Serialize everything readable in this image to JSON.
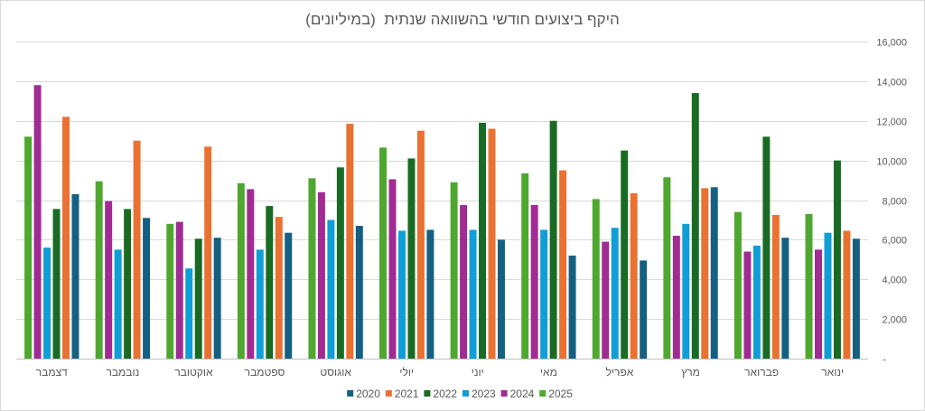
{
  "chart_data": {
    "type": "bar",
    "title": "היקף ביצועים חודשי בהשוואה שנתית  (במיליונים)",
    "categories": [
      "ינואר",
      "פברואר",
      "מרץ",
      "אפריל",
      "מאי",
      "יוני",
      "יולי",
      "אוגוסט",
      "ספטמבר",
      "אוקטובר",
      "נובמבר",
      "דצמבר"
    ],
    "series": [
      {
        "name": "2020",
        "color": "#156082",
        "values": [
          6050,
          6100,
          8650,
          4950,
          5200,
          6000,
          6500,
          6700,
          6350,
          6100,
          7100,
          8300
        ]
      },
      {
        "name": "2021",
        "color": "#E97132",
        "values": [
          6450,
          7250,
          8600,
          8350,
          9500,
          11600,
          11500,
          11850,
          7150,
          10700,
          11000,
          12200
        ]
      },
      {
        "name": "2022",
        "color": "#196B24",
        "values": [
          10000,
          11200,
          13400,
          10500,
          12000,
          11900,
          10100,
          9650,
          7700,
          6050,
          7550,
          7550
        ]
      },
      {
        "name": "2023",
        "color": "#0F9ED5",
        "values": [
          6350,
          5700,
          6800,
          6600,
          6500,
          6500,
          6450,
          7000,
          5500,
          4550,
          5500,
          5600
        ]
      },
      {
        "name": "2024",
        "color": "#A02B93",
        "values": [
          5500,
          5400,
          6200,
          5900,
          7750,
          7750,
          9050,
          8400,
          8550,
          6900,
          7950,
          13800
        ]
      },
      {
        "name": "2025",
        "color": "#4EA72E",
        "values": [
          7300,
          7400,
          9150,
          8050,
          9350,
          8900,
          10650,
          9100,
          8850,
          6800,
          8950,
          11200
        ]
      }
    ],
    "ylim": [
      0,
      16000
    ],
    "yticks": [
      0,
      2000,
      4000,
      6000,
      8000,
      10000,
      12000,
      14000,
      16000
    ],
    "ytick_labels": [
      "-",
      "2,000",
      "4,000",
      "6,000",
      "8,000",
      "10,000",
      "12,000",
      "14,000",
      "16,000"
    ],
    "y_axis_side": "right",
    "x_axis_reversed": true,
    "grid": true,
    "legend_position": "bottom"
  }
}
